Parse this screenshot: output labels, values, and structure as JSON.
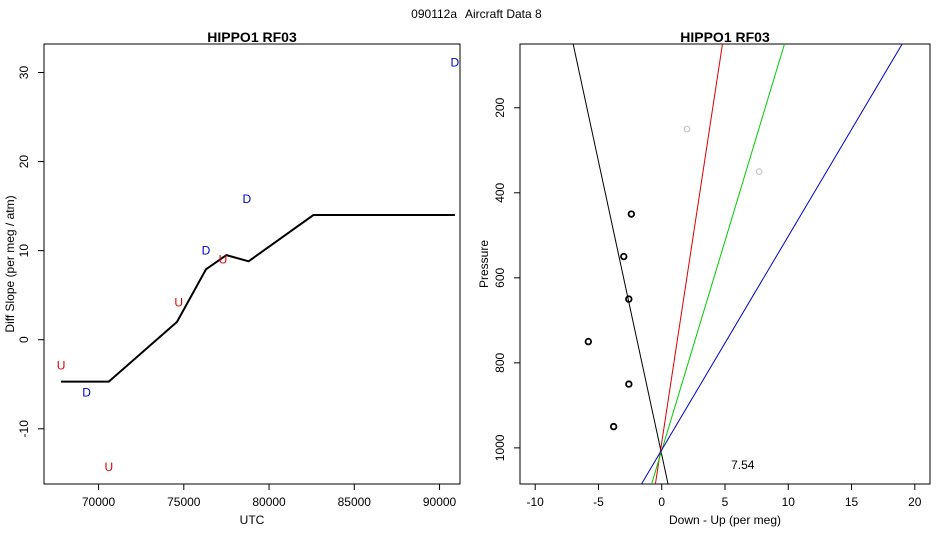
{
  "page": {
    "header_code": "090112a",
    "header_title": "Aircraft Data 8"
  },
  "chart_data": [
    {
      "type": "line",
      "title": "HIPPO1 RF03",
      "xlabel": "UTC",
      "ylabel": "Diff Slope (per meg / atm)",
      "xlim": [
        66800,
        91200
      ],
      "ylim": [
        -16.2,
        33.2
      ],
      "x_ticks": [
        70000,
        75000,
        80000,
        85000,
        90000
      ],
      "x_tick_labels": [
        "70000",
        "75000",
        "80000",
        "85000",
        "90000"
      ],
      "y_ticks": [
        -10,
        0,
        10,
        20,
        30
      ],
      "y_tick_labels": [
        "-10",
        "0",
        "10",
        "20",
        "30"
      ],
      "grid": false,
      "series": [
        {
          "color": "#000000",
          "x": [
            67800,
            70600,
            74600,
            76300,
            77500,
            78800,
            82600,
            90900
          ],
          "y": [
            -4.7,
            -4.7,
            2.0,
            7.9,
            9.5,
            8.8,
            14.0,
            14.0
          ]
        }
      ],
      "markers": [
        {
          "label": "U",
          "color": "#dd0000",
          "x": [
            67800,
            70600,
            74700,
            77300
          ],
          "y": [
            -2.9,
            -14.3,
            4.2,
            9.0
          ]
        },
        {
          "label": "D",
          "color": "#0000cc",
          "x": [
            69300,
            76300,
            78700,
            90900
          ],
          "y": [
            -5.9,
            10.0,
            15.8,
            31.1
          ]
        }
      ]
    },
    {
      "type": "scatter",
      "title": "HIPPO1 RF03",
      "xlabel": "Down - Up (per meg)",
      "ylabel": "Pressure",
      "xlim": [
        -11.2,
        21.2
      ],
      "ylim": [
        1085,
        50
      ],
      "y_reversed": true,
      "x_ticks": [
        -10,
        -5,
        0,
        5,
        10,
        15,
        20
      ],
      "x_tick_labels": [
        "-10",
        "-5",
        "0",
        "5",
        "10",
        "15",
        "20"
      ],
      "y_ticks": [
        200,
        400,
        600,
        800,
        1000
      ],
      "y_tick_labels": [
        "200",
        "400",
        "600",
        "800",
        "1000"
      ],
      "grid": false,
      "points": [
        {
          "x": -2.4,
          "y": 450
        },
        {
          "x": -3.0,
          "y": 550
        },
        {
          "x": -2.6,
          "y": 650
        },
        {
          "x": -5.8,
          "y": 750
        },
        {
          "x": -2.6,
          "y": 850
        },
        {
          "x": -3.8,
          "y": 950
        }
      ],
      "points_grey": [
        {
          "x": 2.0,
          "y": 250
        },
        {
          "x": 7.7,
          "y": 350
        }
      ],
      "fit_lines": [
        {
          "color": "#000000",
          "x": [
            -7.0,
            0.5
          ],
          "y": [
            50,
            1085
          ]
        },
        {
          "color": "#dd0000",
          "x": [
            4.8,
            -0.5
          ],
          "y": [
            50,
            1085
          ]
        },
        {
          "color": "#00cc00",
          "x": [
            9.7,
            -0.8
          ],
          "y": [
            50,
            1085
          ]
        },
        {
          "color": "#0000cc",
          "x": [
            19.0,
            -1.6
          ],
          "y": [
            50,
            1085
          ]
        }
      ],
      "annotation": "7.54",
      "annotation_pos": {
        "x": 5.3,
        "y": 1040
      }
    }
  ]
}
